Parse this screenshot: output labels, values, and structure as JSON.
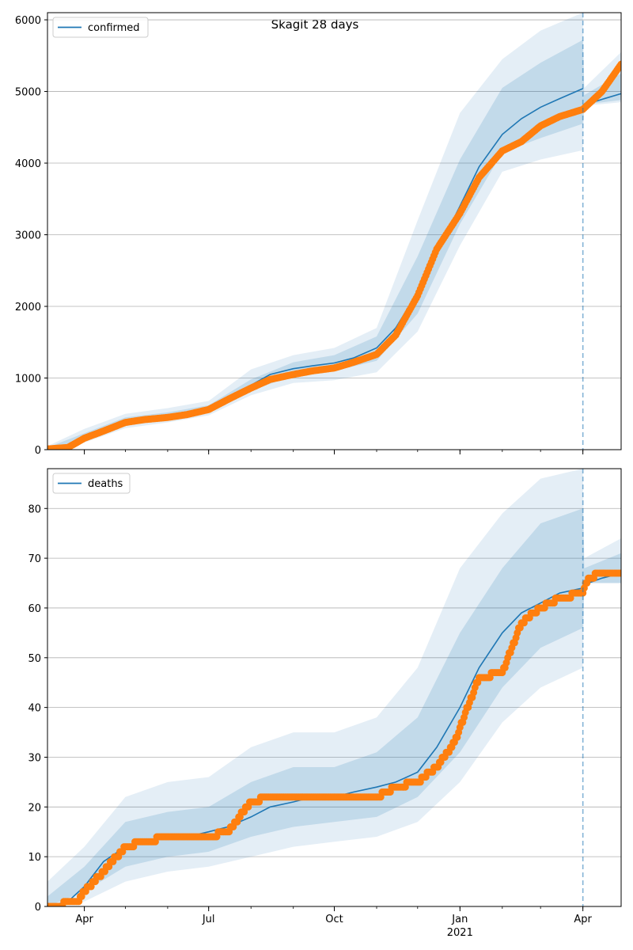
{
  "figure": {
    "title": "Skagit 28 days",
    "x_ticks": [
      {
        "date": "2020-04-01",
        "label": "Apr"
      },
      {
        "date": "2020-07-01",
        "label": "Jul"
      },
      {
        "date": "2020-10-01",
        "label": "Oct"
      },
      {
        "date": "2021-01-01",
        "label": "Jan",
        "sublabel": "2021"
      },
      {
        "date": "2021-04-01",
        "label": "Apr"
      }
    ],
    "forecast_start": "2021-04-01",
    "colors": {
      "model": "#1f77b4",
      "observed": "#ff7f0e",
      "band": "#1f77b4",
      "grid": "#b0b0b0"
    }
  },
  "chart_data": [
    {
      "type": "line",
      "panel": "top",
      "title": "Skagit 28 days",
      "legend": {
        "label": "confirmed",
        "placement": "top-left"
      },
      "grid": "y",
      "x_range": [
        "2020-03-05",
        "2021-04-29"
      ],
      "ylim": [
        0,
        6100
      ],
      "yticks": [
        0,
        1000,
        2000,
        3000,
        4000,
        5000,
        6000
      ],
      "model_series": {
        "x": [
          "2020-03-05",
          "2020-03-20",
          "2020-04-01",
          "2020-04-15",
          "2020-05-01",
          "2020-05-15",
          "2020-06-01",
          "2020-06-15",
          "2020-07-01",
          "2020-07-15",
          "2020-08-01",
          "2020-08-15",
          "2020-09-01",
          "2020-09-15",
          "2020-10-01",
          "2020-10-15",
          "2020-11-01",
          "2020-11-15",
          "2020-12-01",
          "2020-12-15",
          "2021-01-01",
          "2021-01-15",
          "2021-02-01",
          "2021-02-15",
          "2021-03-01",
          "2021-03-15",
          "2021-04-01",
          "2021-04-05",
          "2021-04-15",
          "2021-04-29"
        ],
        "y": [
          20,
          40,
          180,
          300,
          400,
          430,
          460,
          500,
          560,
          700,
          900,
          1050,
          1130,
          1170,
          1210,
          1280,
          1420,
          1700,
          2200,
          2750,
          3400,
          3950,
          4400,
          4620,
          4780,
          4900,
          5040,
          4830,
          4890,
          4970
        ]
      },
      "observed_series": {
        "x": [
          "2020-03-05",
          "2020-03-20",
          "2020-04-01",
          "2020-04-15",
          "2020-05-01",
          "2020-05-15",
          "2020-06-01",
          "2020-06-15",
          "2020-07-01",
          "2020-07-15",
          "2020-08-01",
          "2020-08-15",
          "2020-09-01",
          "2020-09-15",
          "2020-10-01",
          "2020-10-15",
          "2020-11-01",
          "2020-11-15",
          "2020-12-01",
          "2020-12-15",
          "2021-01-01",
          "2021-01-15",
          "2021-02-01",
          "2021-02-15",
          "2021-03-01",
          "2021-03-15",
          "2021-04-01",
          "2021-04-15",
          "2021-04-29"
        ],
        "y": [
          10,
          30,
          160,
          260,
          380,
          420,
          450,
          490,
          560,
          700,
          860,
          980,
          1050,
          1100,
          1140,
          1220,
          1330,
          1600,
          2150,
          2800,
          3300,
          3800,
          4170,
          4300,
          4520,
          4650,
          4750,
          5000,
          5380
        ]
      },
      "bands": {
        "x": [
          "2020-03-05",
          "2020-04-01",
          "2020-05-01",
          "2020-06-01",
          "2020-07-01",
          "2020-08-01",
          "2020-09-01",
          "2020-10-01",
          "2020-11-01",
          "2020-12-01",
          "2021-01-01",
          "2021-02-01",
          "2021-03-01",
          "2021-04-01",
          "2021-04-02",
          "2021-04-29"
        ],
        "outer_low": [
          0,
          100,
          300,
          380,
          480,
          760,
          930,
          970,
          1080,
          1650,
          2850,
          3880,
          4050,
          4180,
          4800,
          4850
        ],
        "outer_high": [
          50,
          290,
          500,
          580,
          680,
          1120,
          1320,
          1420,
          1700,
          3200,
          4700,
          5450,
          5850,
          6100,
          5050,
          5550
        ],
        "inner_low": [
          0,
          140,
          360,
          420,
          520,
          820,
          1040,
          1100,
          1240,
          1900,
          3150,
          4150,
          4350,
          4550,
          4820,
          4880
        ],
        "inner_high": [
          30,
          230,
          450,
          520,
          620,
          980,
          1220,
          1320,
          1580,
          2700,
          4050,
          5050,
          5400,
          5720,
          4950,
          5250
        ]
      }
    },
    {
      "type": "line",
      "panel": "bottom",
      "legend": {
        "label": "deaths",
        "placement": "top-left"
      },
      "grid": "y",
      "x_range": [
        "2020-03-05",
        "2021-04-29"
      ],
      "ylim": [
        0,
        88
      ],
      "yticks": [
        0,
        10,
        20,
        30,
        40,
        50,
        60,
        70,
        80
      ],
      "model_series": {
        "x": [
          "2020-03-05",
          "2020-03-20",
          "2020-04-01",
          "2020-04-15",
          "2020-05-01",
          "2020-05-15",
          "2020-06-01",
          "2020-06-15",
          "2020-07-01",
          "2020-07-15",
          "2020-08-01",
          "2020-08-15",
          "2020-09-01",
          "2020-09-15",
          "2020-10-01",
          "2020-10-15",
          "2020-11-01",
          "2020-11-15",
          "2020-12-01",
          "2020-12-15",
          "2021-01-01",
          "2021-01-15",
          "2021-02-01",
          "2021-02-15",
          "2021-03-01",
          "2021-03-15",
          "2021-04-01",
          "2021-04-05",
          "2021-04-15",
          "2021-04-29"
        ],
        "y": [
          0,
          1,
          4,
          9,
          12,
          13,
          14,
          14,
          15,
          16,
          18,
          20,
          21,
          22,
          22,
          23,
          24,
          25,
          27,
          32,
          40,
          48,
          55,
          59,
          61,
          63,
          64,
          65,
          66,
          67
        ]
      },
      "observed_series": {
        "x": [
          "2020-03-05",
          "2020-03-28",
          "2020-04-01",
          "2020-04-15",
          "2020-05-01",
          "2020-05-15",
          "2020-06-01",
          "2020-06-15",
          "2020-07-01",
          "2020-07-15",
          "2020-08-01",
          "2020-08-15",
          "2020-09-01",
          "2020-09-15",
          "2020-10-01",
          "2020-10-15",
          "2020-11-01",
          "2020-11-15",
          "2020-12-01",
          "2020-12-15",
          "2020-12-28",
          "2021-01-15",
          "2021-02-01",
          "2021-02-15",
          "2021-03-01",
          "2021-03-15",
          "2021-04-01",
          "2021-04-05",
          "2021-04-15",
          "2021-04-29"
        ],
        "y": [
          0,
          1,
          3,
          7,
          12,
          13,
          14,
          14,
          14,
          15,
          21,
          22,
          22,
          22,
          22,
          22,
          22,
          24,
          25,
          28,
          33,
          46,
          47,
          57,
          60,
          62,
          63,
          66,
          67,
          67
        ]
      },
      "bands": {
        "x": [
          "2020-03-05",
          "2020-04-01",
          "2020-05-01",
          "2020-06-01",
          "2020-07-01",
          "2020-08-01",
          "2020-09-01",
          "2020-10-01",
          "2020-11-01",
          "2020-12-01",
          "2021-01-01",
          "2021-02-01",
          "2021-03-01",
          "2021-04-01",
          "2021-04-02",
          "2021-04-29"
        ],
        "outer_low": [
          0,
          1,
          5,
          7,
          8,
          10,
          12,
          13,
          14,
          17,
          25,
          37,
          44,
          48,
          65,
          65
        ],
        "outer_high": [
          5,
          12,
          22,
          25,
          26,
          32,
          35,
          35,
          38,
          48,
          68,
          79,
          86,
          88,
          70,
          74
        ],
        "inner_low": [
          0,
          3,
          8,
          10,
          11,
          14,
          16,
          17,
          18,
          22,
          31,
          44,
          52,
          56,
          65,
          65
        ],
        "inner_high": [
          2,
          8,
          17,
          19,
          20,
          25,
          28,
          28,
          31,
          38,
          55,
          68,
          77,
          80,
          68,
          71
        ]
      }
    }
  ]
}
